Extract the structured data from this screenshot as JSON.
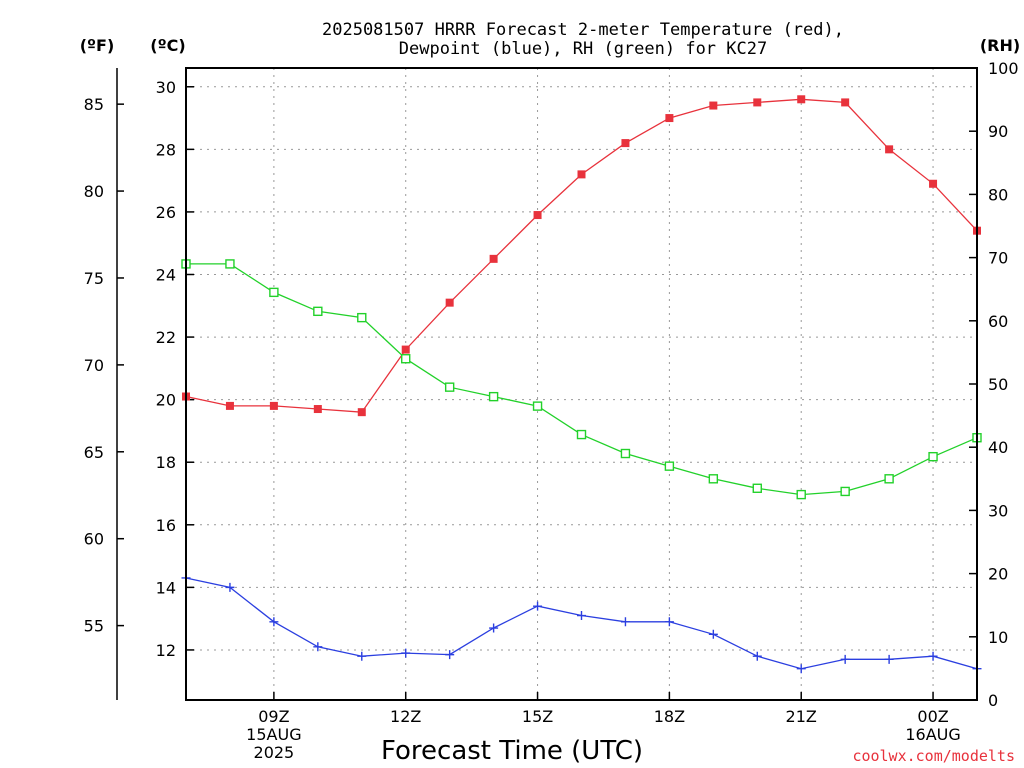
{
  "title_line1": "2025081507 HRRR Forecast 2-meter Temperature (red),",
  "title_line2": "Dewpoint (blue), RH (green) for KC27",
  "credit": "coolwx.com/modelts",
  "colors": {
    "temperature": "#e8323c",
    "dewpoint": "#2b3fe0",
    "rh": "#22d12a",
    "credit": "#e8323c",
    "grid": "#999999"
  },
  "chart_data": {
    "type": "line",
    "title": "2025081507 HRRR Forecast 2-meter Temperature (red), Dewpoint (blue), RH (green) for KC27",
    "xlabel": "Forecast Time (UTC)",
    "x": [
      "07Z",
      "08Z",
      "09Z",
      "10Z",
      "11Z",
      "12Z",
      "13Z",
      "14Z",
      "15Z",
      "16Z",
      "17Z",
      "18Z",
      "19Z",
      "20Z",
      "21Z",
      "22Z",
      "23Z",
      "00Z",
      "01Z"
    ],
    "x_ticks": [
      {
        "index": 2,
        "lines": [
          "09Z",
          "15AUG",
          "2025"
        ]
      },
      {
        "index": 5,
        "lines": [
          "12Z"
        ]
      },
      {
        "index": 8,
        "lines": [
          "15Z"
        ]
      },
      {
        "index": 11,
        "lines": [
          "18Z"
        ]
      },
      {
        "index": 14,
        "lines": [
          "21Z"
        ]
      },
      {
        "index": 17,
        "lines": [
          "00Z",
          "16AUG"
        ]
      }
    ],
    "left_axis_c": {
      "label": "(ºC)",
      "ticks": [
        "12",
        "14",
        "16",
        "18",
        "20",
        "22",
        "24",
        "26",
        "28",
        "30"
      ],
      "ylim": [
        10.4,
        30.6
      ]
    },
    "left_axis_f": {
      "label": "(ºF)",
      "ticks": [
        "55",
        "60",
        "65",
        "70",
        "75",
        "80",
        "85"
      ]
    },
    "right_axis": {
      "label": "(RH)",
      "ticks": [
        "0",
        "10",
        "20",
        "30",
        "40",
        "50",
        "60",
        "70",
        "80",
        "90",
        "100"
      ],
      "ylim": [
        0,
        100
      ]
    },
    "grid": true,
    "series": [
      {
        "name": "Temperature",
        "axis": "c",
        "marker": "filled-square",
        "values": [
          20.1,
          19.8,
          19.8,
          19.7,
          19.6,
          21.6,
          23.1,
          24.5,
          25.9,
          27.2,
          28.2,
          29.0,
          29.4,
          29.5,
          29.6,
          29.5,
          28.0,
          26.9,
          25.4
        ]
      },
      {
        "name": "Dewpoint",
        "axis": "c",
        "marker": "plus",
        "values": [
          14.3,
          14.0,
          12.9,
          12.1,
          11.8,
          11.9,
          11.85,
          12.7,
          13.4,
          13.1,
          12.9,
          12.9,
          12.5,
          11.8,
          11.4,
          11.7,
          11.7,
          11.8,
          11.4
        ]
      },
      {
        "name": "RH",
        "axis": "rh",
        "marker": "open-square",
        "values": [
          69,
          69,
          64.5,
          61.5,
          60.5,
          54,
          49.5,
          48,
          46.5,
          42,
          39,
          37,
          35,
          33.5,
          32.5,
          33,
          35,
          38.5,
          41.5
        ]
      }
    ]
  }
}
